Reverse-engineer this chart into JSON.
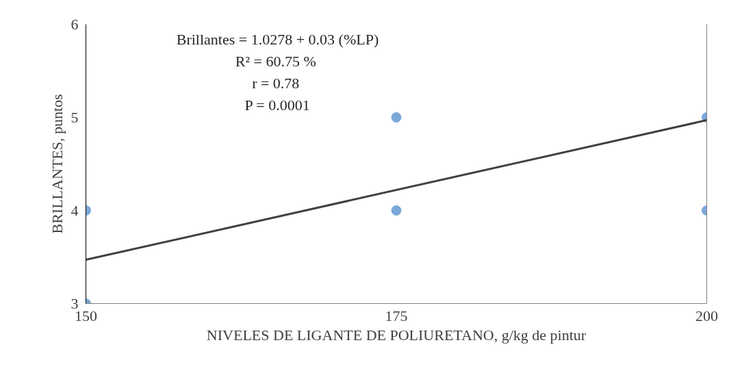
{
  "chart_data": {
    "type": "scatter",
    "xlabel": "NIVELES DE LIGANTE DE POLIURETANO, g/kg de pintur",
    "ylabel": "BRILLANTES, puntos",
    "annotations": [
      "Brillantes = 1.0278 + 0.03 (%LP)",
      "R² =  60.75 %",
      "r =  0.78",
      "P = 0.0001"
    ],
    "xlim": [
      150,
      200
    ],
    "xticks": [
      150,
      175,
      200
    ],
    "ylim": [
      3,
      6
    ],
    "yticks": [
      3,
      4,
      5,
      6
    ],
    "grid": false,
    "series": [
      {
        "marker": "circle",
        "color": "#7ba7d9",
        "x": [
          150,
          150,
          175,
          175,
          200,
          200
        ],
        "values": [
          3,
          4,
          5,
          4,
          5,
          4
        ]
      },
      {
        "type": "line",
        "line_style": "solid",
        "color": "#404040",
        "x": [
          150,
          200
        ],
        "values": [
          3.47,
          4.97
        ]
      }
    ]
  }
}
